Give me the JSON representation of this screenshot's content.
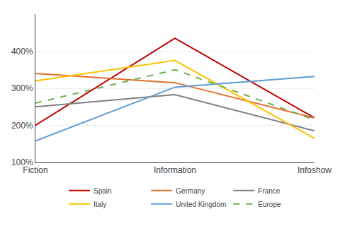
{
  "chart_data": {
    "type": "line",
    "categories": [
      "Fiction",
      "Information",
      "Infoshow"
    ],
    "series": [
      {
        "name": "Spain",
        "color": "#c00000",
        "line_style": "solid",
        "values": [
          200,
          435,
          220
        ]
      },
      {
        "name": "Germany",
        "color": "#e07030",
        "line_style": "solid",
        "values": [
          340,
          315,
          220
        ]
      },
      {
        "name": "France",
        "color": "#808080",
        "line_style": "solid",
        "values": [
          250,
          283,
          185
        ]
      },
      {
        "name": "Italy",
        "color": "#ffc000",
        "line_style": "solid",
        "values": [
          320,
          375,
          165
        ]
      },
      {
        "name": "United Kingdom",
        "color": "#5b9bd5",
        "line_style": "solid",
        "values": [
          158,
          303,
          332
        ]
      },
      {
        "name": "Europe",
        "color": "#70ad47",
        "line_style": "dashed",
        "values": [
          260,
          350,
          215
        ]
      }
    ],
    "ylim": [
      100,
      500
    ],
    "yticks": [
      {
        "value": 100,
        "label": "100%"
      },
      {
        "value": 200,
        "label": "200%"
      },
      {
        "value": 300,
        "label": "300%"
      },
      {
        "value": 400,
        "label": "400%"
      }
    ],
    "grid": true,
    "legend": "bottom"
  }
}
